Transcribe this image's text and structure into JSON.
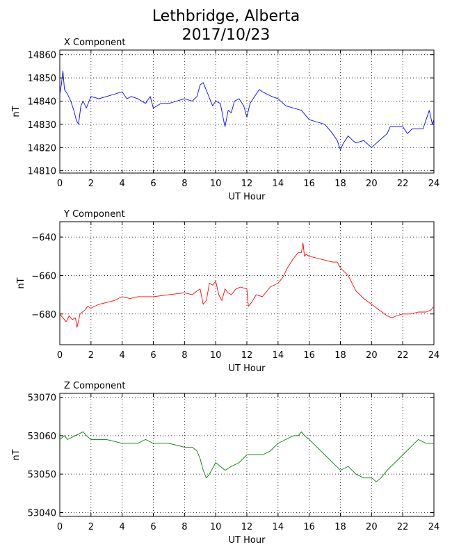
{
  "title_line1": "Lethbridge, Alberta",
  "title_line2": "2017/10/23",
  "chart_data": [
    {
      "type": "line",
      "title": "X Component",
      "xlabel": "UT Hour",
      "ylabel": "nT",
      "xlim": [
        0,
        24
      ],
      "ylim": [
        14809,
        14862
      ],
      "xticks": [
        0,
        2,
        4,
        6,
        8,
        10,
        12,
        14,
        16,
        18,
        20,
        22,
        24
      ],
      "yticks": [
        14810,
        14820,
        14830,
        14840,
        14850,
        14860
      ],
      "grid": true,
      "color": "#0000ff",
      "series": [
        {
          "x": [
            0,
            0.1,
            0.2,
            0.3,
            0.5,
            0.7,
            0.9,
            1.05,
            1.2,
            1.35,
            1.5,
            1.7,
            2.0,
            2.5,
            3.0,
            3.5,
            4.0,
            4.3,
            4.6,
            5.0,
            5.5,
            5.8,
            6.0,
            6.5,
            7.0,
            7.5,
            8.0,
            8.5,
            8.8,
            9.0,
            9.2,
            9.5,
            9.8,
            10.0,
            10.3,
            10.5,
            10.6,
            10.8,
            11.0,
            11.2,
            11.5,
            11.8,
            12.0,
            12.2,
            12.5,
            12.8,
            13.0,
            13.3,
            13.6,
            14.0,
            14.5,
            15.0,
            15.5,
            16.0,
            16.5,
            17.0,
            17.5,
            17.8,
            18.0,
            18.2,
            18.5,
            18.8,
            19.0,
            19.5,
            20.0,
            20.5,
            21.0,
            21.2,
            21.5,
            22.0,
            22.3,
            22.6,
            23.0,
            23.3,
            23.5,
            23.7,
            23.9,
            24.0
          ],
          "y": [
            14843,
            14847,
            14853,
            14845,
            14843,
            14840,
            14836,
            14832,
            14830,
            14838,
            14840,
            14837,
            14842,
            14841,
            14842,
            14843,
            14844,
            14841,
            14842,
            14841,
            14839,
            14842,
            14837,
            14839,
            14839,
            14840,
            14841,
            14840,
            14842,
            14847,
            14848,
            14843,
            14838,
            14840,
            14839,
            14832,
            14829,
            14836,
            14835,
            14840,
            14841,
            14838,
            14833,
            14839,
            14842,
            14845,
            14844,
            14843,
            14842,
            14841,
            14838,
            14837,
            14836,
            14832,
            14831,
            14830,
            14826,
            14823,
            14819,
            14822,
            14825,
            14823,
            14822,
            14823,
            14820,
            14823,
            14826,
            14829,
            14829,
            14829,
            14826,
            14828,
            14828,
            14828,
            14832,
            14836,
            14830,
            14832
          ]
        }
      ]
    },
    {
      "type": "line",
      "title": "Y Component",
      "xlabel": "UT Hour",
      "ylabel": "nT",
      "xlim": [
        0,
        24
      ],
      "ylim": [
        -696,
        -632
      ],
      "xticks": [
        0,
        2,
        4,
        6,
        8,
        10,
        12,
        14,
        16,
        18,
        20,
        22,
        24
      ],
      "yticks": [
        -640,
        -660,
        -680
      ],
      "ytick_labels": [
        "−640",
        "−660",
        "−680"
      ],
      "grid": true,
      "color": "#ff0000",
      "series": [
        {
          "x": [
            0,
            0.2,
            0.4,
            0.6,
            0.8,
            1.0,
            1.1,
            1.3,
            1.6,
            1.8,
            2.0,
            2.5,
            3.0,
            3.5,
            4.0,
            4.5,
            5.0,
            6.0,
            7.0,
            8.0,
            8.5,
            8.8,
            9.0,
            9.2,
            9.4,
            9.6,
            9.8,
            10.0,
            10.2,
            10.4,
            10.6,
            10.8,
            11.0,
            11.3,
            11.6,
            12.0,
            12.1,
            12.3,
            12.6,
            13.0,
            13.5,
            14.0,
            14.3,
            14.6,
            15.0,
            15.3,
            15.5,
            15.6,
            15.7,
            15.8,
            16.0,
            16.5,
            17.0,
            17.5,
            17.8,
            18.0,
            18.5,
            19.0,
            19.5,
            20.0,
            20.5,
            21.0,
            21.3,
            21.6,
            22.0,
            22.5,
            23.0,
            23.5,
            23.8,
            24.0
          ],
          "y": [
            -680,
            -682,
            -684,
            -681,
            -683,
            -682,
            -687,
            -680,
            -678,
            -676,
            -677,
            -675,
            -674,
            -673,
            -671,
            -672,
            -671,
            -671,
            -670,
            -669,
            -670,
            -668,
            -667,
            -675,
            -673,
            -664,
            -665,
            -663,
            -670,
            -673,
            -667,
            -669,
            -670,
            -667,
            -666,
            -667,
            -676,
            -674,
            -670,
            -671,
            -666,
            -664,
            -661,
            -656,
            -651,
            -648,
            -648,
            -643,
            -650,
            -649,
            -650,
            -651,
            -652,
            -653,
            -653,
            -656,
            -660,
            -668,
            -672,
            -675,
            -678,
            -681,
            -682,
            -681,
            -680,
            -680,
            -679,
            -679,
            -678,
            -676
          ]
        }
      ]
    },
    {
      "type": "line",
      "title": "Z Component",
      "xlabel": "UT Hour",
      "ylabel": "nT",
      "xlim": [
        0,
        24
      ],
      "ylim": [
        53039,
        53071
      ],
      "xticks": [
        0,
        2,
        4,
        6,
        8,
        10,
        12,
        14,
        16,
        18,
        20,
        22,
        24
      ],
      "yticks": [
        53040,
        53050,
        53060,
        53070
      ],
      "grid": true,
      "color": "#008000",
      "series": [
        {
          "x": [
            0,
            0.3,
            0.5,
            1.0,
            1.5,
            1.7,
            2.0,
            3.0,
            4.0,
            5.0,
            5.5,
            6.0,
            7.0,
            8.0,
            8.5,
            8.8,
            9.0,
            9.2,
            9.4,
            9.6,
            10.0,
            10.3,
            10.6,
            11.0,
            11.5,
            12.0,
            12.5,
            13.0,
            13.5,
            14.0,
            14.5,
            15.0,
            15.3,
            15.5,
            15.7,
            16.0,
            16.5,
            17.0,
            17.5,
            18.0,
            18.5,
            19.0,
            19.5,
            20.0,
            20.3,
            20.6,
            21.0,
            21.5,
            22.0,
            22.5,
            23.0,
            23.5,
            24.0
          ],
          "y": [
            53059,
            53060,
            53059,
            53060,
            53061,
            53060,
            53059,
            53059,
            53058,
            53058,
            53059,
            53058,
            53058,
            53057,
            53057,
            53056,
            53054,
            53051,
            53049,
            53050,
            53053,
            53052,
            53051,
            53052,
            53053,
            53055,
            53055,
            53055,
            53056,
            53058,
            53059,
            53060,
            53060,
            53061,
            53060,
            53059,
            53057,
            53055,
            53053,
            53051,
            53052,
            53050,
            53049,
            53049,
            53048,
            53049,
            53051,
            53053,
            53055,
            53057,
            53059,
            53058,
            53058
          ]
        }
      ]
    }
  ]
}
